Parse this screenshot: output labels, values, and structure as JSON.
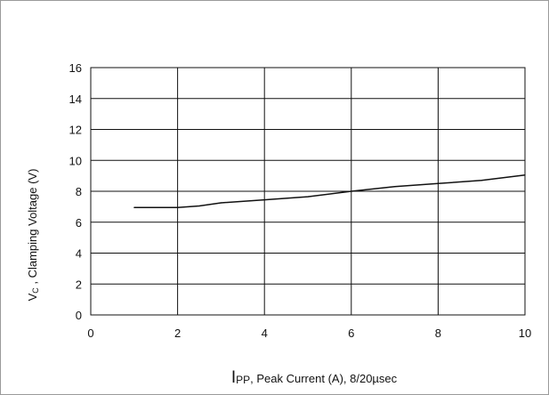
{
  "chart_data": {
    "type": "line",
    "title": "",
    "xlabel": "IPP, Peak Current (A), 8/20µsec",
    "xlabel_main": "I",
    "xlabel_sub": "PP",
    "xlabel_rest": ", Peak Current (A), 8/20µsec",
    "ylabel": "VC , Clamping Voltage (V)",
    "ylabel_main": "V",
    "ylabel_sub": "C",
    "ylabel_rest": " , Clamping Voltage (V)",
    "xlim": [
      0,
      10
    ],
    "ylim": [
      0,
      16
    ],
    "x_ticks": [
      0,
      2,
      4,
      6,
      8,
      10
    ],
    "y_ticks": [
      0,
      2,
      4,
      6,
      8,
      10,
      12,
      14,
      16
    ],
    "grid": true,
    "legend": "none",
    "line_color": "#111111",
    "series": [
      {
        "x": [
          1.0,
          2.0,
          2.5,
          3.0,
          4.0,
          5.0,
          6.0,
          7.0,
          8.0,
          9.0,
          10.0
        ],
        "values": [
          6.95,
          6.95,
          7.05,
          7.25,
          7.45,
          7.65,
          8.0,
          8.3,
          8.5,
          8.7,
          9.05
        ]
      }
    ]
  }
}
